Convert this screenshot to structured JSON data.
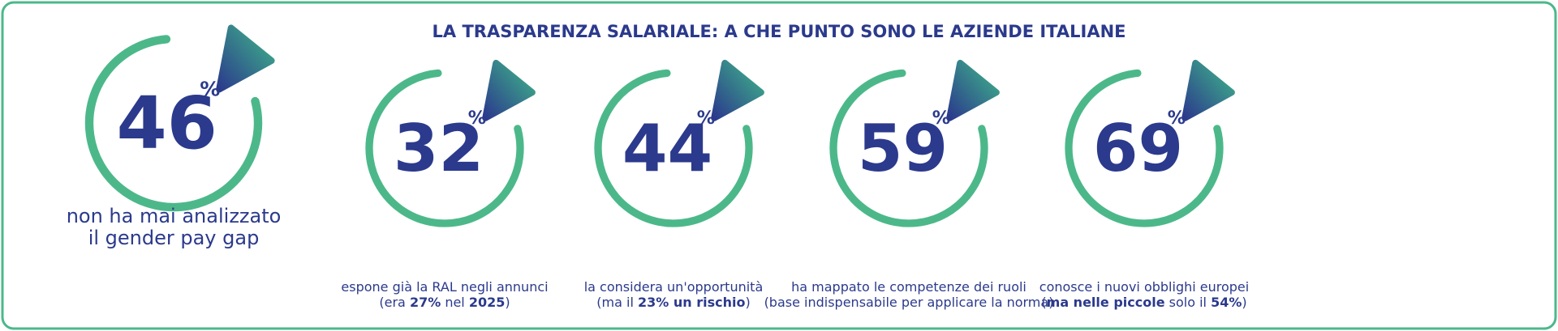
{
  "title": "LA TRASPARENZA SALARIALE: A CHE PUNTO SONO LE AZIENDE ITALIANE",
  "stats": [
    {
      "value": 46,
      "unit": "%",
      "caption": [
        [
          {
            "text": "non ha mai analizzato",
            "bold": false
          }
        ],
        [
          {
            "text": "il gender pay gap",
            "bold": false
          }
        ]
      ]
    },
    {
      "value": 32,
      "unit": "%",
      "caption": [
        [
          {
            "text": "espone già la RAL negli annunci",
            "bold": false
          }
        ],
        [
          {
            "text": "(era ",
            "bold": false
          },
          {
            "text": "27%",
            "bold": true
          },
          {
            "text": " nel ",
            "bold": false
          },
          {
            "text": "2025",
            "bold": true
          },
          {
            "text": ")",
            "bold": false
          }
        ]
      ]
    },
    {
      "value": 44,
      "unit": "%",
      "caption": [
        [
          {
            "text": "la considera un'opportunità",
            "bold": false
          }
        ],
        [
          {
            "text": "(ma il ",
            "bold": false
          },
          {
            "text": "23% un rischio",
            "bold": true
          },
          {
            "text": ")",
            "bold": false
          }
        ]
      ]
    },
    {
      "value": 59,
      "unit": "%",
      "caption": [
        [
          {
            "text": "ha mappato le competenze dei ruoli",
            "bold": false
          }
        ],
        [
          {
            "text": "(base indispensabile per applicare la norma)",
            "bold": false
          }
        ]
      ]
    },
    {
      "value": 69,
      "unit": "%",
      "caption": [
        [
          {
            "text": "conosce i nuovi obblighi europei",
            "bold": false
          }
        ],
        [
          {
            "text": "(",
            "bold": false
          },
          {
            "text": "ma nelle piccole",
            "bold": true
          },
          {
            "text": " solo il ",
            "bold": false
          },
          {
            "text": "54%",
            "bold": true
          },
          {
            "text": ")",
            "bold": false
          }
        ]
      ]
    }
  ]
}
